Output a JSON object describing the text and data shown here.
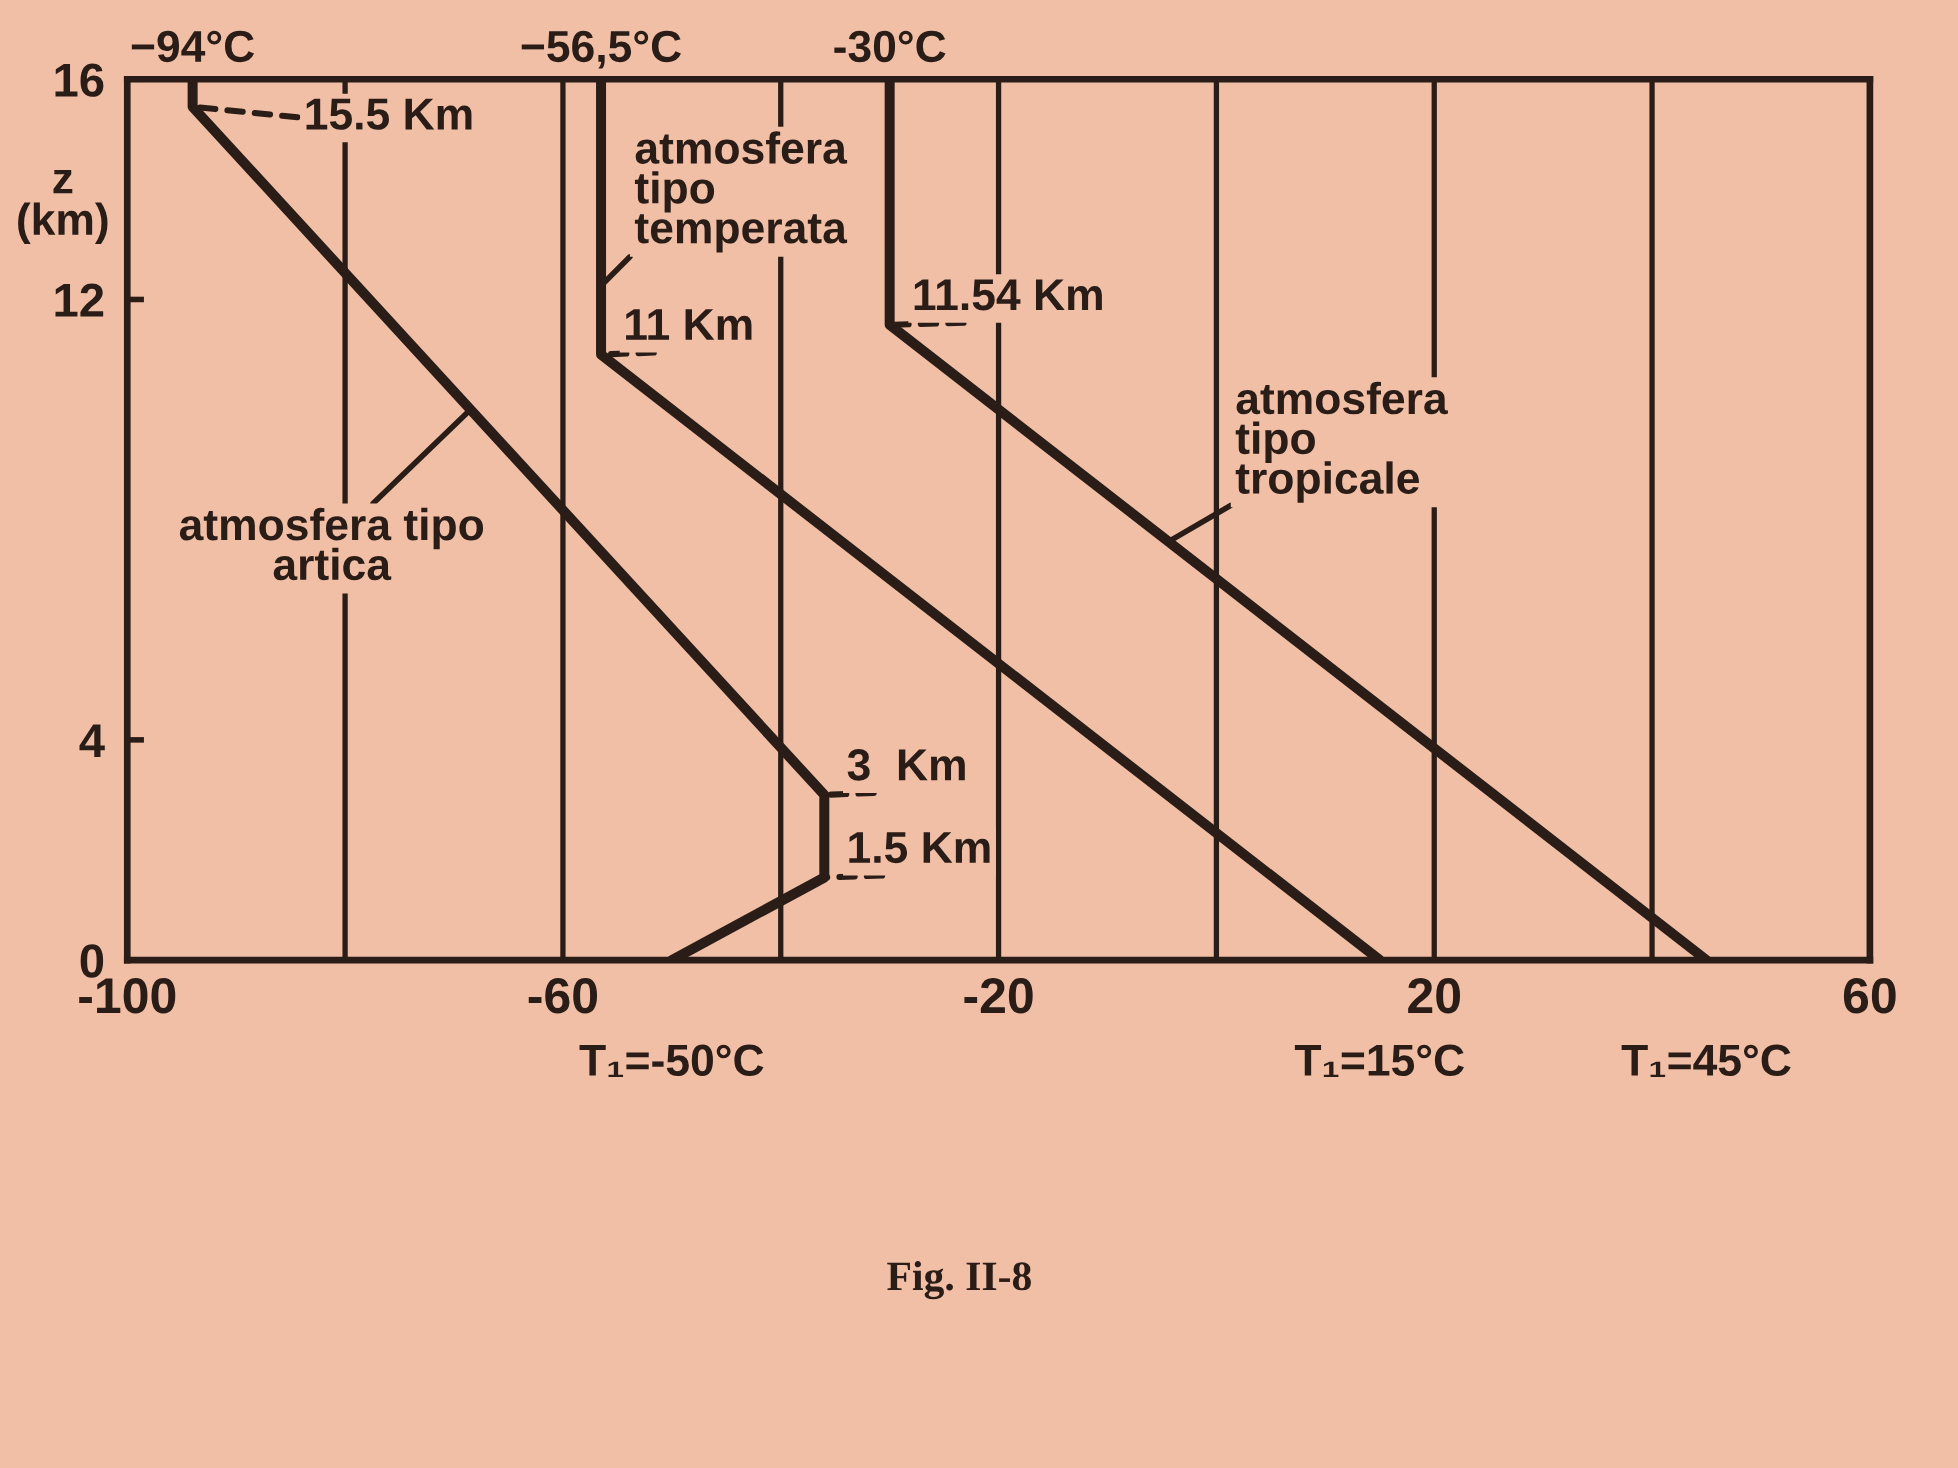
{
  "chart_data": {
    "type": "line",
    "ylabel": "z\n(km)",
    "xlim": [
      -100,
      60
    ],
    "ylim": [
      0,
      16
    ],
    "xticks": [
      -100,
      {
        "value": -80,
        "label": null
      },
      -60,
      {
        "value": -40,
        "label": null
      },
      -20,
      {
        "value": 0,
        "label": null
      },
      20,
      {
        "value": 40,
        "label": null
      },
      60
    ],
    "yticks": [
      0,
      4,
      12,
      16
    ],
    "grid": "x",
    "line_style": "solid",
    "series": [
      {
        "name": "atmosfera tipo\nartica",
        "color": "#2a1c17",
        "x": [
          -50,
          -36,
          -36,
          -94,
          -94
        ],
        "values": [
          0,
          1.5,
          3,
          15.5,
          16
        ]
      },
      {
        "name": "atmosfera tipo\ntemperata",
        "color": "#2a1c17",
        "x": [
          15,
          -56.5,
          -56.5
        ],
        "values": [
          0,
          11,
          16
        ]
      },
      {
        "name": "atmosfera\ntipo\ntropicale",
        "color": "#2a1c17",
        "x": [
          45,
          -30,
          -30
        ],
        "values": [
          0,
          11.54,
          16
        ]
      }
    ],
    "annotations": [
      {
        "text": "−94°C",
        "x": -94,
        "y": 16
      },
      {
        "text": "−56,5°C",
        "x": -56.5,
        "y": 16
      },
      {
        "text": "-30°C",
        "x": -30,
        "y": 16
      },
      {
        "text": "15.5 Km",
        "x": -94,
        "y": 15.5
      },
      {
        "text": "11 Km",
        "x": -56.5,
        "y": 11
      },
      {
        "text": "11.54 Km",
        "x": -30,
        "y": 11.54
      },
      {
        "text": "3  Km",
        "x": -36,
        "y": 3
      },
      {
        "text": "1.5 Km",
        "x": -36,
        "y": 1.5
      },
      {
        "text": "T₁=-50°C",
        "x": -50,
        "y": 0
      },
      {
        "text": "T₁=15°C",
        "x": 15,
        "y": 0
      },
      {
        "text": "T₁=45°C",
        "x": 45,
        "y": 0
      },
      "Fig. II-8"
    ]
  }
}
